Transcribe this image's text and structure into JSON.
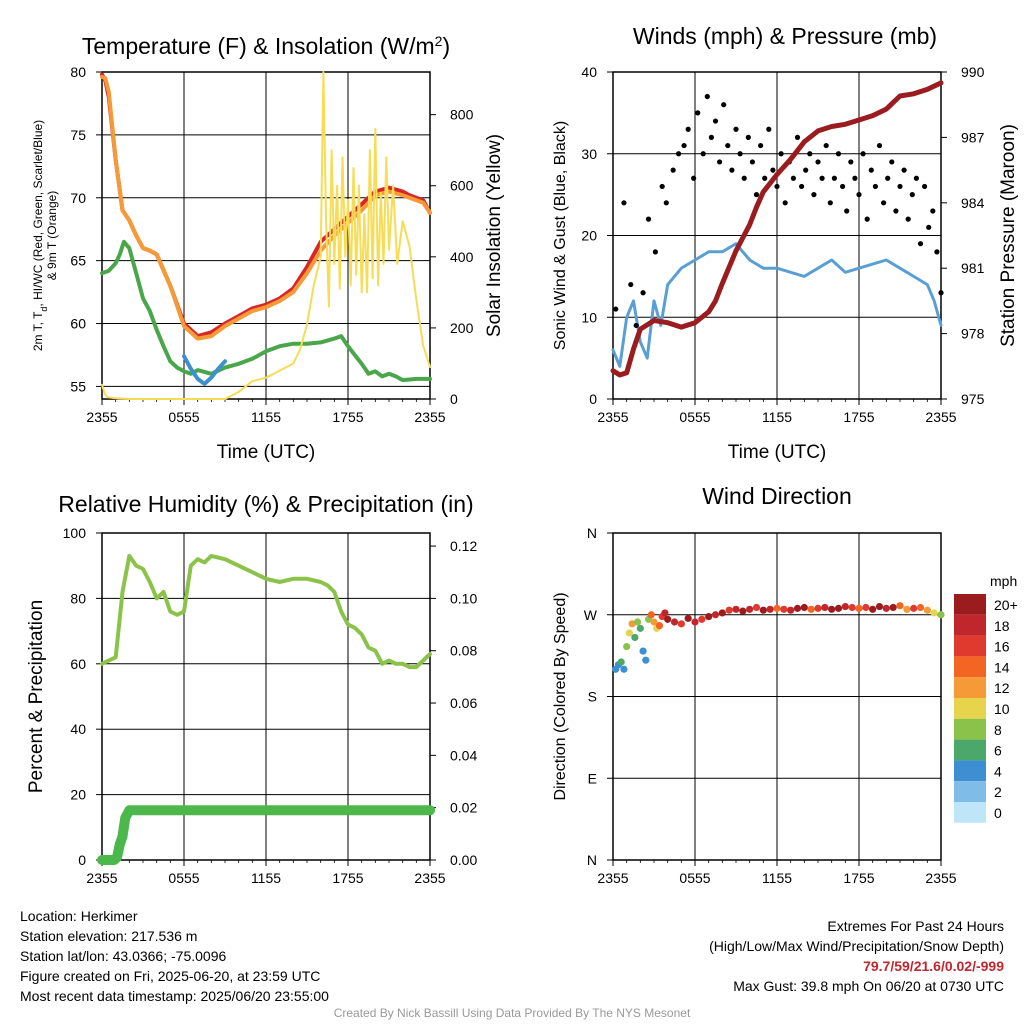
{
  "chart_data": [
    {
      "type": "line",
      "title": "Temperature (F) & Insolation (W/m²)",
      "xlabel": "Time (UTC)",
      "ylabel": "2m T, T_d, HI/WC (Red, Green, Scarlet/Blue) & 9m T (Orange)",
      "ylabel_line1": "2m T, T",
      "ylabel_sub": "d",
      "ylabel_line1_rest": ", HI/WC (Red, Green, Scarlet/Blue)",
      "ylabel_line2": "& 9m T (Orange)",
      "y2label": "Solar Insolation (Yellow)",
      "xticks": [
        "2355",
        "0555",
        "1155",
        "1755",
        "2355"
      ],
      "ylim": [
        54,
        80
      ],
      "yticks": [
        55,
        60,
        65,
        70,
        75,
        80
      ],
      "y2lim": [
        0,
        920
      ],
      "y2ticks": [
        0,
        200,
        400,
        600,
        800
      ],
      "grid": true,
      "series": [
        {
          "color": "#d62728",
          "axis": "left",
          "x": [
            0,
            0.25,
            0.5,
            1,
            1.5,
            2,
            2.5,
            3,
            3.5,
            4,
            5,
            6,
            7,
            8,
            9,
            10,
            11,
            12,
            13,
            14,
            15,
            16,
            17,
            18,
            19,
            20,
            21,
            22,
            22.5,
            23,
            23.5,
            24
          ],
          "values": [
            79.8,
            79.3,
            78,
            73,
            69,
            68.2,
            67,
            66,
            65.8,
            65.5,
            63,
            60,
            59,
            59.3,
            60,
            60.6,
            61.2,
            61.5,
            62,
            62.8,
            64.5,
            66.5,
            67.5,
            68.5,
            69.5,
            70.5,
            70.8,
            70.5,
            70.2,
            70,
            69.8,
            68.8
          ]
        },
        {
          "color": "#f59a36",
          "axis": "left",
          "x": [
            0,
            0.25,
            0.5,
            1,
            1.5,
            2,
            2.5,
            3,
            3.5,
            4,
            5,
            6,
            7,
            8,
            9,
            10,
            11,
            12,
            13,
            14,
            15,
            16,
            17,
            18,
            19,
            20,
            21,
            22,
            22.5,
            23,
            23.5,
            24
          ],
          "values": [
            79.6,
            79.5,
            78.4,
            73,
            69,
            68.2,
            67,
            66,
            65.8,
            65.5,
            63,
            59.8,
            58.8,
            59,
            59.8,
            60.4,
            61,
            61.3,
            61.8,
            62.5,
            64,
            65.8,
            67,
            68,
            69,
            70.2,
            70.5,
            70.2,
            70,
            69.8,
            69.6,
            68.8
          ]
        },
        {
          "color": "#4aa64a",
          "axis": "left",
          "x": [
            0,
            0.5,
            1,
            1.3,
            1.6,
            2,
            2.5,
            3,
            3.5,
            4,
            4.5,
            5,
            5.5,
            6,
            6.5,
            7,
            8,
            9,
            10,
            11,
            12,
            13,
            14,
            15,
            16,
            17,
            17.5,
            18,
            18.5,
            19,
            19.5,
            20,
            20.5,
            21,
            21.5,
            22,
            23,
            24
          ],
          "values": [
            64,
            64.2,
            64.8,
            65.5,
            66.5,
            66,
            64,
            62,
            61,
            59.5,
            58.2,
            57,
            56.5,
            56.2,
            56,
            56.3,
            56,
            56.5,
            56.8,
            57.2,
            57.8,
            58.2,
            58.4,
            58.4,
            58.5,
            58.8,
            59,
            58.2,
            57.5,
            56.8,
            56,
            56.2,
            55.8,
            56,
            55.8,
            55.5,
            55.6,
            55.6
          ]
        },
        {
          "color": "#3d8fd1",
          "axis": "left",
          "x": [
            6,
            6.5,
            7,
            7.5,
            8,
            8.5,
            9
          ],
          "values": [
            57.4,
            56.4,
            55.6,
            55.2,
            55.7,
            56.4,
            57
          ]
        },
        {
          "color": "#f7dc55",
          "axis": "right",
          "x": [
            0,
            0.2,
            0.4,
            1,
            2,
            3,
            4,
            5,
            6,
            7,
            8,
            9,
            10,
            11,
            12,
            13,
            14,
            14.5,
            15,
            15.5,
            16,
            16.2,
            16.4,
            16.6,
            16.8,
            17,
            17.2,
            17.4,
            17.6,
            17.8,
            18,
            18.2,
            18.4,
            18.6,
            18.8,
            19,
            19.2,
            19.4,
            19.6,
            19.8,
            20,
            20.2,
            20.4,
            20.6,
            20.8,
            21,
            21.3,
            21.6,
            22,
            22.5,
            23,
            23.5,
            24
          ],
          "values": [
            40,
            15,
            5,
            2,
            0,
            0,
            0,
            0,
            0,
            0,
            0,
            0,
            20,
            50,
            60,
            80,
            100,
            140,
            210,
            320,
            400,
            920,
            500,
            260,
            700,
            380,
            600,
            310,
            680,
            400,
            560,
            320,
            650,
            350,
            600,
            300,
            520,
            300,
            700,
            340,
            760,
            320,
            580,
            380,
            680,
            420,
            600,
            380,
            500,
            430,
            280,
            150,
            90
          ]
        }
      ]
    },
    {
      "type": "scatter",
      "title": "Winds (mph) & Pressure (mb)",
      "xlabel": "Time (UTC)",
      "ylabel": "Sonic Wind & Gust (Blue, Black)",
      "y2label": "Station Pressure (Maroon)",
      "xticks": [
        "2355",
        "0555",
        "1155",
        "1755",
        "2355"
      ],
      "ylim": [
        0,
        40
      ],
      "yticks": [
        0,
        10,
        20,
        30,
        40
      ],
      "y2lim": [
        975,
        990
      ],
      "y2ticks": [
        975,
        978,
        981,
        984,
        987,
        990
      ],
      "grid": true,
      "wind": {
        "color": "#5a9fd4",
        "x": [
          0,
          0.5,
          1,
          1.5,
          2,
          2.5,
          3,
          3.5,
          4,
          4.5,
          5,
          6,
          7,
          8,
          9,
          10,
          11,
          12,
          13,
          14,
          15,
          16,
          17,
          18,
          19,
          20,
          21,
          22,
          23,
          23.5,
          24
        ],
        "values": [
          6,
          4,
          10,
          12,
          7,
          5,
          12,
          9,
          14,
          15,
          16,
          17,
          18,
          18,
          19,
          17,
          16,
          16,
          15.5,
          15,
          16,
          17,
          15.5,
          16,
          16.5,
          17,
          16,
          15,
          14,
          12,
          9
        ]
      },
      "gust": {
        "color": "#000000",
        "x": [
          0.2,
          0.8,
          1.3,
          1.7,
          2.2,
          2.6,
          3.1,
          3.6,
          3.9,
          4.4,
          4.8,
          5.2,
          5.5,
          5.9,
          6.2,
          6.6,
          6.9,
          7.2,
          7.5,
          7.8,
          8.1,
          8.4,
          8.7,
          9.0,
          9.3,
          9.6,
          9.9,
          10.2,
          10.5,
          10.8,
          11.1,
          11.4,
          11.7,
          12.0,
          12.3,
          12.6,
          12.9,
          13.2,
          13.5,
          13.8,
          14.1,
          14.4,
          14.7,
          15.0,
          15.3,
          15.6,
          15.9,
          16.2,
          16.5,
          16.8,
          17.1,
          17.4,
          17.7,
          18.0,
          18.3,
          18.6,
          18.9,
          19.2,
          19.5,
          19.8,
          20.1,
          20.4,
          20.7,
          21.0,
          21.3,
          21.6,
          21.9,
          22.2,
          22.5,
          22.8,
          23.1,
          23.4,
          23.7,
          24.0
        ],
        "values": [
          11,
          24,
          14,
          9,
          13,
          22,
          18,
          26,
          24,
          28,
          30,
          31,
          33,
          27,
          35,
          30,
          37,
          32,
          34,
          29,
          36,
          31,
          28,
          33,
          30,
          27,
          32,
          29,
          25,
          31,
          27,
          33,
          28,
          26,
          30,
          24,
          29,
          27,
          32,
          26,
          28,
          30,
          25,
          29,
          27,
          31,
          24,
          27,
          30,
          26,
          23,
          29,
          27,
          25,
          30,
          22,
          28,
          26,
          31,
          24,
          27,
          29,
          23,
          26,
          28,
          22,
          25,
          27,
          19,
          26,
          21,
          23,
          18,
          13
        ]
      },
      "pressure": {
        "color": "#9b1c1f",
        "x": [
          0,
          0.5,
          1,
          1.5,
          2,
          3,
          4,
          5,
          6,
          7,
          7.5,
          8,
          9,
          10,
          10.5,
          11,
          12,
          13,
          14,
          15,
          16,
          17,
          18,
          19,
          20,
          21,
          22,
          23,
          24
        ],
        "values": [
          976.3,
          976.1,
          976.2,
          977.3,
          978.2,
          978.6,
          978.5,
          978.3,
          978.5,
          979.0,
          979.5,
          980.3,
          981.8,
          983.0,
          983.8,
          984.5,
          985.3,
          986.0,
          986.8,
          987.3,
          987.5,
          987.6,
          987.8,
          988.0,
          988.3,
          988.9,
          989.0,
          989.2,
          989.5
        ]
      }
    },
    {
      "type": "line",
      "title": "Relative Humidity (%) & Precipitation (in)",
      "ylabel": "Percent & Precipitation",
      "xticks": [
        "2355",
        "0555",
        "1155",
        "1755",
        "2355"
      ],
      "ylim": [
        0,
        100
      ],
      "yticks": [
        0,
        20,
        40,
        60,
        80,
        100
      ],
      "y2lim": [
        0,
        0.125
      ],
      "y2ticks": [
        0.0,
        0.02,
        0.04,
        0.06,
        0.08,
        0.1,
        0.12
      ],
      "grid": true,
      "rh": {
        "color": "#8bc34a",
        "x": [
          0,
          0.5,
          1,
          1.5,
          2,
          2.5,
          3,
          3.5,
          4,
          4.5,
          5,
          5.5,
          6,
          6.5,
          7,
          7.5,
          8,
          9,
          10,
          11,
          12,
          13,
          14,
          15,
          16,
          16.5,
          17,
          17.5,
          18,
          18.5,
          19,
          19.5,
          20,
          20.5,
          21,
          21.5,
          22,
          22.5,
          23,
          23.5,
          24
        ],
        "values": [
          60,
          61,
          62,
          82,
          93,
          90,
          89,
          85,
          80,
          82,
          76,
          75,
          76,
          90,
          92,
          91,
          93,
          92,
          90,
          88,
          86,
          85,
          86,
          86,
          85,
          84,
          82,
          76,
          72,
          71,
          69,
          65,
          64,
          60,
          61,
          60,
          60,
          59,
          59,
          61,
          63
        ]
      },
      "precip": {
        "color": "#4cb84c",
        "x": [
          0,
          0.3,
          0.6,
          0.9,
          1.1,
          1.3,
          1.5,
          1.7,
          2,
          3,
          6,
          9,
          12,
          15,
          18,
          21,
          24
        ],
        "values": [
          0,
          0,
          0,
          0,
          0.001,
          0.006,
          0.009,
          0.016,
          0.019,
          0.019,
          0.019,
          0.019,
          0.019,
          0.019,
          0.019,
          0.019,
          0.019
        ]
      }
    },
    {
      "type": "scatter",
      "title": "Wind Direction",
      "ylabel": "Direction (Colored By Speed)",
      "xticks": [
        "2355",
        "0555",
        "1155",
        "1755",
        "2355"
      ],
      "yticks": [
        "N",
        "E",
        "S",
        "W",
        "N"
      ],
      "ylim": [
        0,
        360
      ],
      "grid": true,
      "legend": {
        "title": "mph",
        "labels": [
          "20+",
          "18",
          "16",
          "14",
          "12",
          "10",
          "8",
          "6",
          "4",
          "2",
          "0"
        ],
        "colors": [
          "#9b1c1f",
          "#c0272d",
          "#e03a2f",
          "#f26522",
          "#f59a36",
          "#e6d44c",
          "#8bc34a",
          "#4ca86a",
          "#3d8fd1",
          "#7fbde8",
          "#bfe5f8"
        ]
      },
      "x": [
        0.2,
        0.4,
        0.6,
        0.8,
        1.0,
        1.2,
        1.4,
        1.6,
        1.8,
        2.0,
        2.2,
        2.4,
        2.6,
        2.8,
        3.0,
        3.2,
        3.4,
        3.6,
        3.8,
        4.0,
        4.5,
        5,
        5.5,
        6,
        6.5,
        7,
        7.5,
        8,
        8.5,
        9,
        9.5,
        10,
        10.5,
        11,
        11.5,
        12,
        12.5,
        13,
        13.5,
        14,
        14.5,
        15,
        15.5,
        16,
        16.5,
        17,
        17.5,
        18,
        18.5,
        19,
        19.5,
        20,
        20.5,
        21,
        21.5,
        22,
        22.5,
        23,
        23.5,
        24
      ],
      "values": [
        210,
        215,
        218,
        210,
        235,
        250,
        260,
        245,
        262,
        255,
        230,
        220,
        265,
        270,
        262,
        255,
        258,
        268,
        272,
        265,
        262,
        260,
        266,
        262,
        265,
        268,
        270,
        272,
        275,
        276,
        274,
        276,
        278,
        275,
        276,
        277,
        276,
        275,
        277,
        278,
        276,
        277,
        278,
        276,
        277,
        279,
        278,
        277,
        278,
        276,
        279,
        277,
        278,
        280,
        276,
        277,
        278,
        275,
        272,
        270
      ],
      "speeds": [
        4,
        5,
        6,
        4,
        8,
        10,
        12,
        7,
        9,
        6,
        4,
        5,
        8,
        14,
        12,
        10,
        14,
        16,
        18,
        20,
        18,
        16,
        20,
        18,
        16,
        20,
        18,
        20,
        16,
        18,
        20,
        18,
        16,
        20,
        18,
        14,
        16,
        18,
        20,
        20,
        14,
        16,
        18,
        20,
        20,
        18,
        16,
        14,
        16,
        20,
        20,
        18,
        20,
        14,
        12,
        16,
        14,
        12,
        10,
        8
      ]
    }
  ],
  "footer": {
    "location": "Location: Herkimer",
    "elevation": "Station elevation: 217.536 m",
    "latlon": "Station lat/lon: 43.0366; -75.0096",
    "created": "Figure created on Fri, 2025-06-20, at 23:59 UTC",
    "recent": "Most recent data timestamp: 2025/06/20 23:55:00",
    "extremes_title": "Extremes For Past 24 Hours",
    "extremes_sub": "(High/Low/Max Wind/Precipitation/Snow Depth)",
    "extremes_values": "79.7/59/21.6/0.02/-999",
    "max_gust": "Max Gust: 39.8 mph On 06/20 at 0730 UTC",
    "credit": "Created By Nick Bassill Using Data Provided By The NYS Mesonet"
  }
}
